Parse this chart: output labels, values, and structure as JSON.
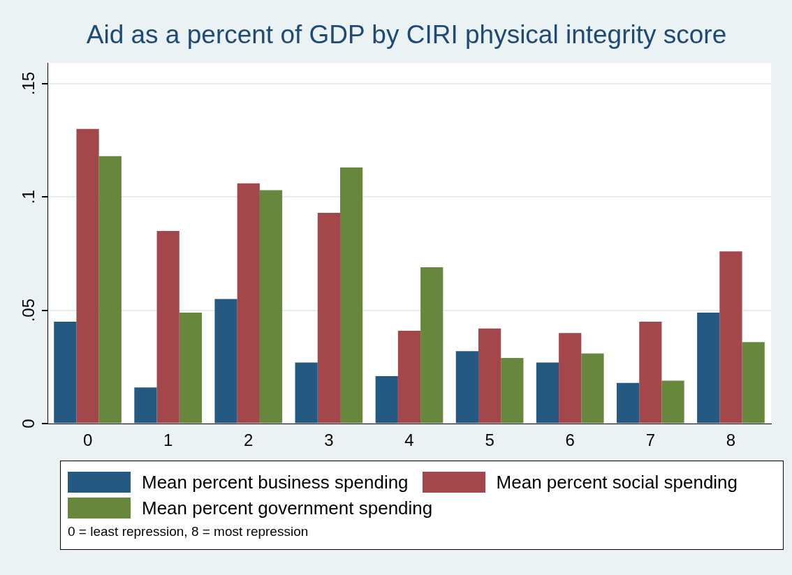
{
  "chart_data": {
    "type": "bar",
    "title": "Aid as a percent of GDP by CIRI physical integrity score",
    "categories": [
      "0",
      "1",
      "2",
      "3",
      "4",
      "5",
      "6",
      "7",
      "8"
    ],
    "series": [
      {
        "name": "Mean percent business spending",
        "color": "#245a82",
        "values": [
          0.045,
          0.016,
          0.055,
          0.027,
          0.021,
          0.032,
          0.027,
          0.018,
          0.049
        ]
      },
      {
        "name": "Mean percent social spending",
        "color": "#a4474b",
        "values": [
          0.13,
          0.085,
          0.106,
          0.093,
          0.041,
          0.042,
          0.04,
          0.045,
          0.076
        ]
      },
      {
        "name": "Mean percent government spending",
        "color": "#67883c",
        "values": [
          0.118,
          0.049,
          0.103,
          0.113,
          0.069,
          0.029,
          0.031,
          0.019,
          0.036
        ]
      }
    ],
    "ylim": [
      0,
      0.159
    ],
    "yticks": [
      {
        "value": 0,
        "label": "0"
      },
      {
        "value": 0.05,
        "label": ".05"
      },
      {
        "value": 0.1,
        "label": ".1"
      },
      {
        "value": 0.15,
        "label": ".15"
      }
    ],
    "grid": "y",
    "legend": "bottom",
    "annotations": [
      "0 = least repression, 8 = most repression"
    ]
  }
}
